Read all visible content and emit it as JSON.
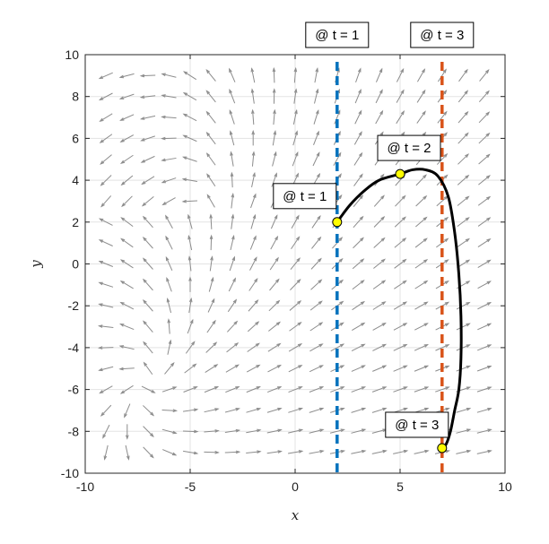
{
  "chart_data": {
    "type": "line",
    "title": "",
    "xlabel": "x",
    "ylabel": "y",
    "xlim": [
      -10,
      10
    ],
    "ylim": [
      -10,
      10
    ],
    "xticks": [
      -10,
      -5,
      0,
      5,
      10
    ],
    "yticks": [
      -10,
      -8,
      -6,
      -4,
      -2,
      0,
      2,
      4,
      6,
      8,
      10
    ],
    "xtick_labels": [
      "-10",
      "-5",
      "0",
      "5",
      "10"
    ],
    "ytick_labels": [
      "-10",
      "-8",
      "-6",
      "-4",
      "-2",
      "0",
      "2",
      "4",
      "6",
      "8",
      "10"
    ],
    "grid": true,
    "vector_field": {
      "color": "#8c8c8c",
      "x_range": [
        -10,
        10
      ],
      "y_range": [
        -10,
        10
      ],
      "grid_step": 1
    },
    "series": [
      {
        "color": "#000000",
        "x": [
          2.0,
          2.6,
          3.3,
          4.0,
          5.0,
          5.6,
          6.2,
          6.8,
          7.3,
          7.6,
          7.8,
          7.9,
          7.9,
          7.8,
          7.6,
          7.4,
          7.2,
          7.0
        ],
        "y": [
          2.0,
          2.8,
          3.5,
          4.0,
          4.3,
          4.5,
          4.5,
          4.2,
          3.2,
          1.5,
          -0.5,
          -2.5,
          -4.5,
          -6.0,
          -7.0,
          -8.0,
          -8.6,
          -8.8
        ]
      }
    ],
    "markers": [
      {
        "x": 2.0,
        "y": 2.0,
        "color": "#ffff00"
      },
      {
        "x": 5.0,
        "y": 4.3,
        "color": "#ffff00"
      },
      {
        "x": 7.0,
        "y": -8.8,
        "color": "#ffff00"
      }
    ],
    "vertical_lines": [
      {
        "x": 2,
        "color": "#0072bd",
        "label": "@ t = 1"
      },
      {
        "x": 7,
        "color": "#d95319",
        "label": "@ t = 3"
      }
    ],
    "point_labels": [
      {
        "text": "@ t = 1",
        "x": 2.0,
        "y": 2.0
      },
      {
        "text": "@ t = 2",
        "x": 5.0,
        "y": 4.3
      },
      {
        "text": "@ t = 3",
        "x": 7.0,
        "y": -8.8
      }
    ]
  }
}
